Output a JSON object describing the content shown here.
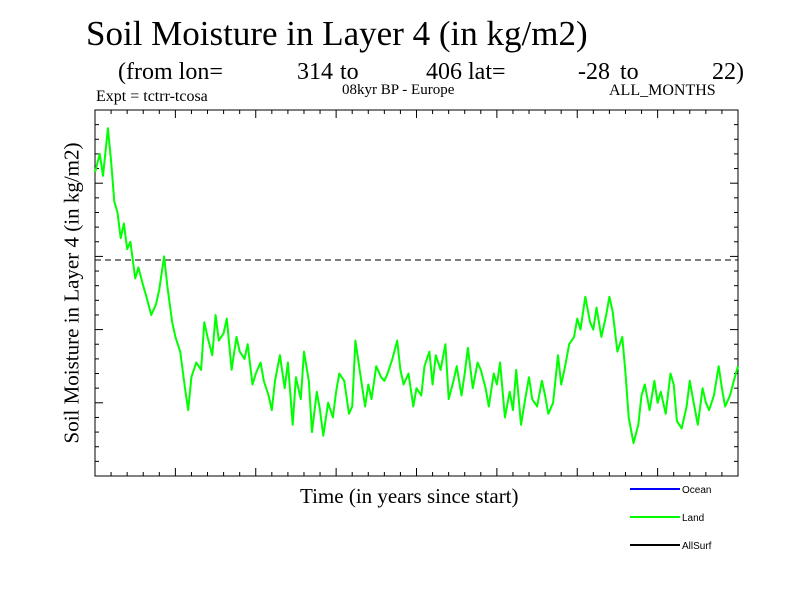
{
  "chart_data": {
    "type": "line",
    "title": "Soil Moisture in Layer 4 (in kg/m2)",
    "subtitle": {
      "prefix": "(from lon=",
      "lon_start": "314",
      "to1": "to",
      "lon_end": "406",
      "lat_label": "lat=",
      "lat_start": "-28",
      "to2": "to",
      "lat_end": "22)"
    },
    "experiment": "Expt = tctrr-tcosa",
    "period": "08kyr BP - Europe",
    "months": "ALL_MONTHS",
    "xlabel": "Time (in years since start)",
    "ylabel": "Soil Moisture in Layer 4 (in kg/m2)",
    "xlim": [
      0,
      400
    ],
    "ylim": [
      0,
      100
    ],
    "reference_line": 59,
    "series": [
      {
        "name": "Ocean",
        "color": "#0000ff",
        "values": []
      },
      {
        "name": "Land",
        "color": "#00ff00",
        "x": [
          0,
          3,
          5,
          8,
          10,
          12,
          14,
          16,
          18,
          20,
          22,
          25,
          27,
          30,
          32,
          35,
          38,
          40,
          43,
          45,
          48,
          50,
          53,
          56,
          58,
          60,
          63,
          66,
          68,
          70,
          73,
          75,
          77,
          80,
          82,
          85,
          88,
          90,
          93,
          95,
          98,
          100,
          103,
          105,
          108,
          110,
          112,
          115,
          118,
          120,
          123,
          125,
          128,
          130,
          133,
          135,
          138,
          140,
          142,
          145,
          148,
          150,
          152,
          155,
          158,
          160,
          162,
          165,
          168,
          170,
          172,
          175,
          178,
          180,
          182,
          185,
          188,
          190,
          192,
          195,
          198,
          200,
          203,
          205,
          208,
          210,
          212,
          215,
          218,
          220,
          223,
          225,
          228,
          230,
          232,
          235,
          238,
          240,
          243,
          245,
          248,
          250,
          252,
          255,
          258,
          260,
          262,
          265,
          268,
          270,
          272,
          275,
          278,
          280,
          282,
          285,
          288,
          290,
          292,
          295,
          298,
          300,
          302,
          305,
          308,
          310,
          312,
          315,
          318,
          320,
          322,
          325,
          328,
          330,
          332,
          335,
          338,
          340,
          342,
          345,
          348,
          350,
          352,
          355,
          358,
          360,
          362,
          365,
          368,
          370,
          372,
          375,
          378,
          380,
          382,
          385,
          388,
          390,
          392,
          395,
          398,
          400
        ],
        "values": [
          83,
          88,
          82,
          95,
          86,
          75,
          72,
          65,
          69,
          62,
          64,
          54,
          57,
          52,
          49,
          44,
          47,
          51,
          60,
          52,
          42,
          38,
          34,
          24,
          18,
          27,
          31,
          29,
          42,
          38,
          33,
          44,
          37,
          39,
          43,
          29,
          38,
          34,
          32,
          36,
          25,
          28,
          31,
          26,
          22,
          18,
          26,
          33,
          24,
          31,
          14,
          27,
          21,
          34,
          26,
          12,
          23,
          18,
          11,
          20,
          16,
          23,
          28,
          26,
          17,
          19,
          37,
          28,
          19,
          25,
          21,
          30,
          27,
          26,
          28,
          32,
          37,
          29,
          25,
          28,
          19,
          24,
          22,
          30,
          34,
          25,
          33,
          29,
          36,
          21,
          26,
          30,
          22,
          28,
          35,
          24,
          31,
          29,
          24,
          19,
          28,
          25,
          31,
          16,
          23,
          18,
          29,
          14,
          22,
          27,
          21,
          19,
          26,
          22,
          17,
          20,
          33,
          25,
          29,
          36,
          38,
          43,
          40,
          49,
          42,
          40,
          46,
          38,
          44,
          49,
          45,
          34,
          38,
          28,
          16,
          9,
          14,
          22,
          25,
          18,
          26,
          20,
          23,
          17,
          28,
          25,
          15,
          13,
          19,
          26,
          21,
          14,
          24,
          20,
          18,
          22,
          30,
          24,
          19,
          22,
          27,
          30
        ]
      },
      {
        "name": "AllSurf",
        "color": "#000000",
        "values": []
      }
    ],
    "legend": [
      "Ocean",
      "Land",
      "AllSurf"
    ],
    "grid": false
  }
}
